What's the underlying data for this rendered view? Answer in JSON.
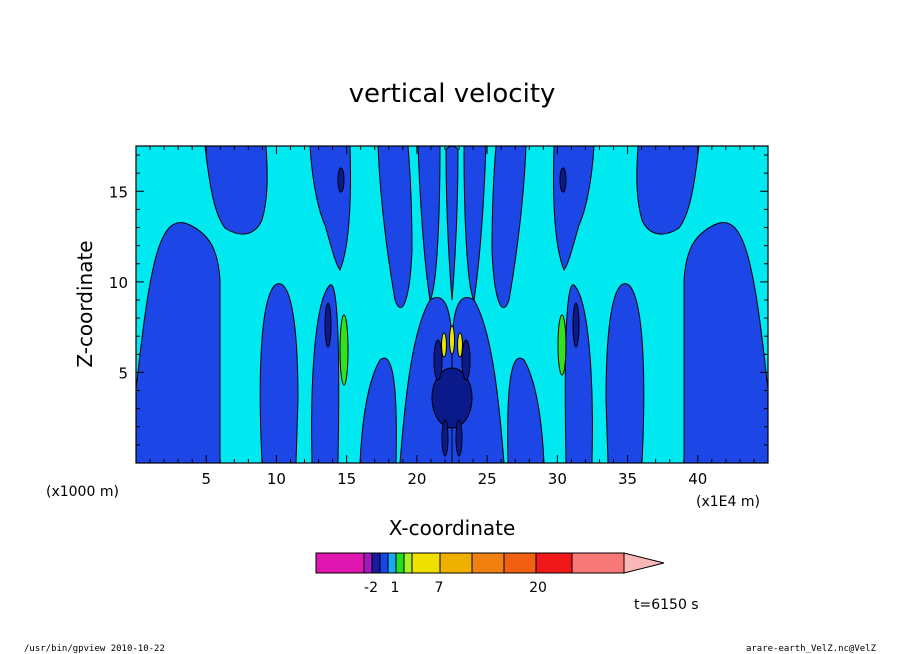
{
  "chart_data": {
    "type": "heatmap",
    "title": "vertical velocity",
    "xlabel": "X-coordinate",
    "ylabel": "Z-coordinate",
    "x_unit_left": "(x1000 m)",
    "x_unit_right": "(x1E4 m)",
    "xlim": [
      0,
      45
    ],
    "ylim": [
      0,
      17.5
    ],
    "x_ticks": [
      5,
      10,
      15,
      20,
      25,
      30,
      35,
      40
    ],
    "y_ticks": [
      5,
      10,
      15
    ],
    "colorbar": {
      "colors": [
        "#e016b0",
        "#a018c0",
        "#1a1aa0",
        "#1446e8",
        "#1aa8f0",
        "#22e020",
        "#a8f020",
        "#f0e000",
        "#f0b000",
        "#f08010",
        "#f06010",
        "#f01818",
        "#f87878",
        "#f8b8b8"
      ],
      "tick_labels": [
        "-2",
        "1",
        "7",
        "20"
      ]
    },
    "time_label": "t=6150 s"
  },
  "footer": {
    "left": "/usr/bin/gpview   2010-10-22",
    "right": "arare-earth_VelZ.nc@VelZ"
  },
  "colors": {
    "light": "#00e8f0",
    "blue": "#1c46e6",
    "navy": "#0a1a8a",
    "green": "#32e21e",
    "yellow": "#e8e800"
  }
}
